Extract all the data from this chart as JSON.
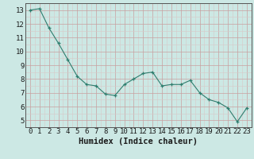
{
  "x": [
    0,
    1,
    2,
    3,
    4,
    5,
    6,
    7,
    8,
    9,
    10,
    11,
    12,
    13,
    14,
    15,
    16,
    17,
    18,
    19,
    20,
    21,
    22,
    23
  ],
  "y": [
    13.0,
    13.1,
    11.7,
    10.6,
    9.4,
    8.2,
    7.6,
    7.5,
    6.9,
    6.8,
    7.6,
    8.0,
    8.4,
    8.5,
    7.5,
    7.6,
    7.6,
    7.9,
    7.0,
    6.5,
    6.3,
    5.9,
    4.9,
    5.9
  ],
  "line_color": "#2e7d6e",
  "marker": "+",
  "marker_color": "#2e7d6e",
  "bg_color": "#cce8e4",
  "grid_color_major": "#c8a0a0",
  "grid_color_minor": "#d8c8c8",
  "xlabel": "Humidex (Indice chaleur)",
  "xlabel_fontsize": 7.5,
  "tick_fontsize": 6.5,
  "ylim": [
    4.5,
    13.5
  ],
  "xlim": [
    -0.5,
    23.5
  ],
  "yticks": [
    5,
    6,
    7,
    8,
    9,
    10,
    11,
    12,
    13
  ],
  "xticks": [
    0,
    1,
    2,
    3,
    4,
    5,
    6,
    7,
    8,
    9,
    10,
    11,
    12,
    13,
    14,
    15,
    16,
    17,
    18,
    19,
    20,
    21,
    22,
    23
  ]
}
